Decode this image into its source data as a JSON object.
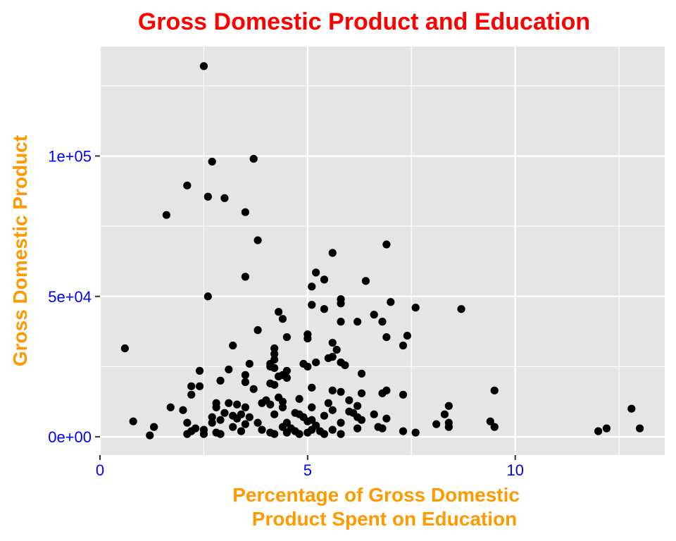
{
  "chart_data": {
    "type": "scatter",
    "title": "Gross Domestic Product and Education",
    "xlabel_lines": [
      "Percentage of Gross Domestic",
      "Product Spent on Education"
    ],
    "ylabel": "Gross Domestic Product",
    "xlim": [
      0,
      13.6
    ],
    "ylim": [
      -6500,
      139000
    ],
    "x_ticks": [
      {
        "value": 0,
        "label": "0"
      },
      {
        "value": 5,
        "label": "5"
      },
      {
        "value": 10,
        "label": "10"
      }
    ],
    "y_ticks": [
      {
        "value": 0,
        "label": "0e+00"
      },
      {
        "value": 50000,
        "label": "5e+04"
      },
      {
        "value": 100000,
        "label": "1e+05"
      }
    ],
    "x_minor": [
      2.5,
      7.5,
      12.5
    ],
    "y_minor": [
      25000,
      75000,
      125000
    ],
    "grid": true,
    "colors": {
      "title": "#ff0000",
      "axis_title": "#ff9900",
      "tick_label": "#0000ff",
      "panel": "#e5e5e5",
      "grid": "#ffffff",
      "point": "#000000"
    },
    "points": [
      [
        2.5,
        132000
      ],
      [
        3.7,
        99000
      ],
      [
        2.7,
        98000
      ],
      [
        2.1,
        89500
      ],
      [
        2.6,
        85500
      ],
      [
        3.0,
        85000
      ],
      [
        1.6,
        79000
      ],
      [
        3.5,
        80000
      ],
      [
        3.8,
        70000
      ],
      [
        6.9,
        68500
      ],
      [
        5.6,
        65500
      ],
      [
        5.2,
        58500
      ],
      [
        3.5,
        57000
      ],
      [
        5.4,
        56000
      ],
      [
        6.4,
        55500
      ],
      [
        5.1,
        53500
      ],
      [
        2.6,
        50000
      ],
      [
        5.8,
        49000
      ],
      [
        7.0,
        48000
      ],
      [
        5.1,
        47000
      ],
      [
        5.8,
        47500
      ],
      [
        7.6,
        46000
      ],
      [
        8.7,
        45500
      ],
      [
        5.4,
        45500
      ],
      [
        4.3,
        44500
      ],
      [
        6.6,
        43500
      ],
      [
        4.4,
        42000
      ],
      [
        5.8,
        41000
      ],
      [
        6.2,
        41000
      ],
      [
        6.8,
        41000
      ],
      [
        3.8,
        38000
      ],
      [
        5.0,
        36500
      ],
      [
        7.4,
        36000
      ],
      [
        4.5,
        35500
      ],
      [
        6.9,
        35500
      ],
      [
        5.0,
        35000
      ],
      [
        5.6,
        33500
      ],
      [
        7.3,
        32500
      ],
      [
        0.6,
        31500
      ],
      [
        3.2,
        32500
      ],
      [
        4.2,
        31500
      ],
      [
        5.7,
        31000
      ],
      [
        4.2,
        29500
      ],
      [
        5.6,
        28500
      ],
      [
        5.5,
        28000
      ],
      [
        4.2,
        27500
      ],
      [
        5.8,
        26500
      ],
      [
        4.9,
        26000
      ],
      [
        5.2,
        26500
      ],
      [
        3.6,
        26000
      ],
      [
        4.1,
        26000
      ],
      [
        4.1,
        25000
      ],
      [
        5.0,
        25000
      ],
      [
        5.9,
        25500
      ],
      [
        4.2,
        24500
      ],
      [
        3.1,
        24000
      ],
      [
        2.4,
        23500
      ],
      [
        4.5,
        23500
      ],
      [
        6.3,
        22500
      ],
      [
        3.5,
        22000
      ],
      [
        4.4,
        22000
      ],
      [
        4.3,
        21500
      ],
      [
        4.5,
        21000
      ],
      [
        2.9,
        20000
      ],
      [
        3.5,
        19500
      ],
      [
        4.1,
        19000
      ],
      [
        4.2,
        18500
      ],
      [
        2.2,
        18000
      ],
      [
        2.4,
        18000
      ],
      [
        3.7,
        17000
      ],
      [
        5.1,
        17500
      ],
      [
        5.6,
        16500
      ],
      [
        6.9,
        16500
      ],
      [
        9.5,
        16500
      ],
      [
        5.8,
        16000
      ],
      [
        6.8,
        15500
      ],
      [
        6.3,
        15500
      ],
      [
        2.2,
        15000
      ],
      [
        7.3,
        15000
      ],
      [
        4.3,
        14000
      ],
      [
        4.8,
        13500
      ],
      [
        4.0,
        13000
      ],
      [
        6.0,
        13000
      ],
      [
        4.4,
        12500
      ],
      [
        3.9,
        12000
      ],
      [
        2.8,
        12000
      ],
      [
        3.1,
        12000
      ],
      [
        5.5,
        12000
      ],
      [
        4.1,
        11500
      ],
      [
        8.4,
        11000
      ],
      [
        3.3,
        11500
      ],
      [
        6.2,
        11000
      ],
      [
        2.8,
        10500
      ],
      [
        3.5,
        10500
      ],
      [
        4.4,
        10500
      ],
      [
        5.1,
        10500
      ],
      [
        1.7,
        10500
      ],
      [
        2.0,
        9500
      ],
      [
        5.6,
        9500
      ],
      [
        6.0,
        9000
      ],
      [
        4.7,
        8500
      ],
      [
        6.1,
        8500
      ],
      [
        3.0,
        8500
      ],
      [
        3.4,
        8000
      ],
      [
        4.2,
        8000
      ],
      [
        6.6,
        8000
      ],
      [
        8.3,
        8000
      ],
      [
        4.8,
        8000
      ],
      [
        3.2,
        7500
      ],
      [
        5.4,
        7500
      ],
      [
        2.7,
        7000
      ],
      [
        3.6,
        7000
      ],
      [
        4.9,
        7000
      ],
      [
        6.2,
        7000
      ],
      [
        3.3,
        6500
      ],
      [
        6.9,
        6500
      ],
      [
        2.9,
        6000
      ],
      [
        5.1,
        6000
      ],
      [
        0.8,
        5500
      ],
      [
        5.0,
        5500
      ],
      [
        6.3,
        6000
      ],
      [
        9.4,
        5500
      ],
      [
        2.1,
        5000
      ],
      [
        2.7,
        5000
      ],
      [
        3.8,
        5000
      ],
      [
        4.5,
        5000
      ],
      [
        5.8,
        5000
      ],
      [
        8.4,
        5000
      ],
      [
        8.1,
        4500
      ],
      [
        3.5,
        4500
      ],
      [
        5.2,
        4000
      ],
      [
        1.3,
        3500
      ],
      [
        3.2,
        3500
      ],
      [
        4.4,
        3500
      ],
      [
        6.7,
        3500
      ],
      [
        9.5,
        3500
      ],
      [
        12.8,
        10000
      ],
      [
        12.2,
        3000
      ],
      [
        13.0,
        3000
      ],
      [
        2.3,
        3000
      ],
      [
        4.6,
        3000
      ],
      [
        6.2,
        3000
      ],
      [
        8.4,
        3500
      ],
      [
        6.8,
        3000
      ],
      [
        3.9,
        2500
      ],
      [
        5.6,
        2500
      ],
      [
        2.5,
        2500
      ],
      [
        2.2,
        2000
      ],
      [
        4.7,
        2000
      ],
      [
        5.3,
        2000
      ],
      [
        7.3,
        2000
      ],
      [
        12.0,
        2000
      ],
      [
        3.4,
        2000
      ],
      [
        4.1,
        1500
      ],
      [
        4.5,
        1500
      ],
      [
        5.0,
        1500
      ],
      [
        7.6,
        1500
      ],
      [
        2.8,
        1500
      ],
      [
        2.1,
        1000
      ],
      [
        4.8,
        1000
      ],
      [
        5.4,
        1000
      ],
      [
        2.5,
        1000
      ],
      [
        2.9,
        1000
      ],
      [
        4.2,
        1000
      ],
      [
        5.8,
        1000
      ],
      [
        1.2,
        500
      ],
      [
        5.1,
        2500
      ]
    ]
  }
}
